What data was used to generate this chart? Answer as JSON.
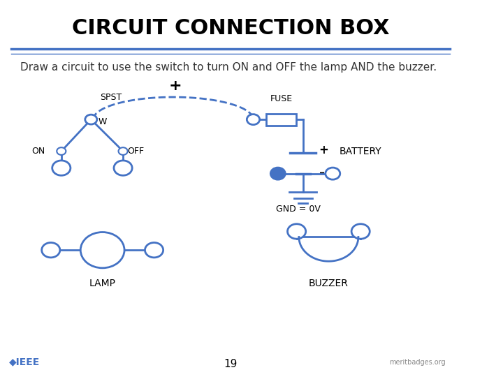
{
  "title": "CIRCUIT CONNECTION BOX",
  "subtitle": "Draw a circuit to use the switch to turn ON and OFF the lamp AND the buzzer.",
  "title_color": "#000000",
  "subtitle_color": "#333333",
  "line_color": "#4472C4",
  "bg_color": "#FFFFFF",
  "title_fontsize": 22,
  "subtitle_fontsize": 11,
  "page_number": "19"
}
